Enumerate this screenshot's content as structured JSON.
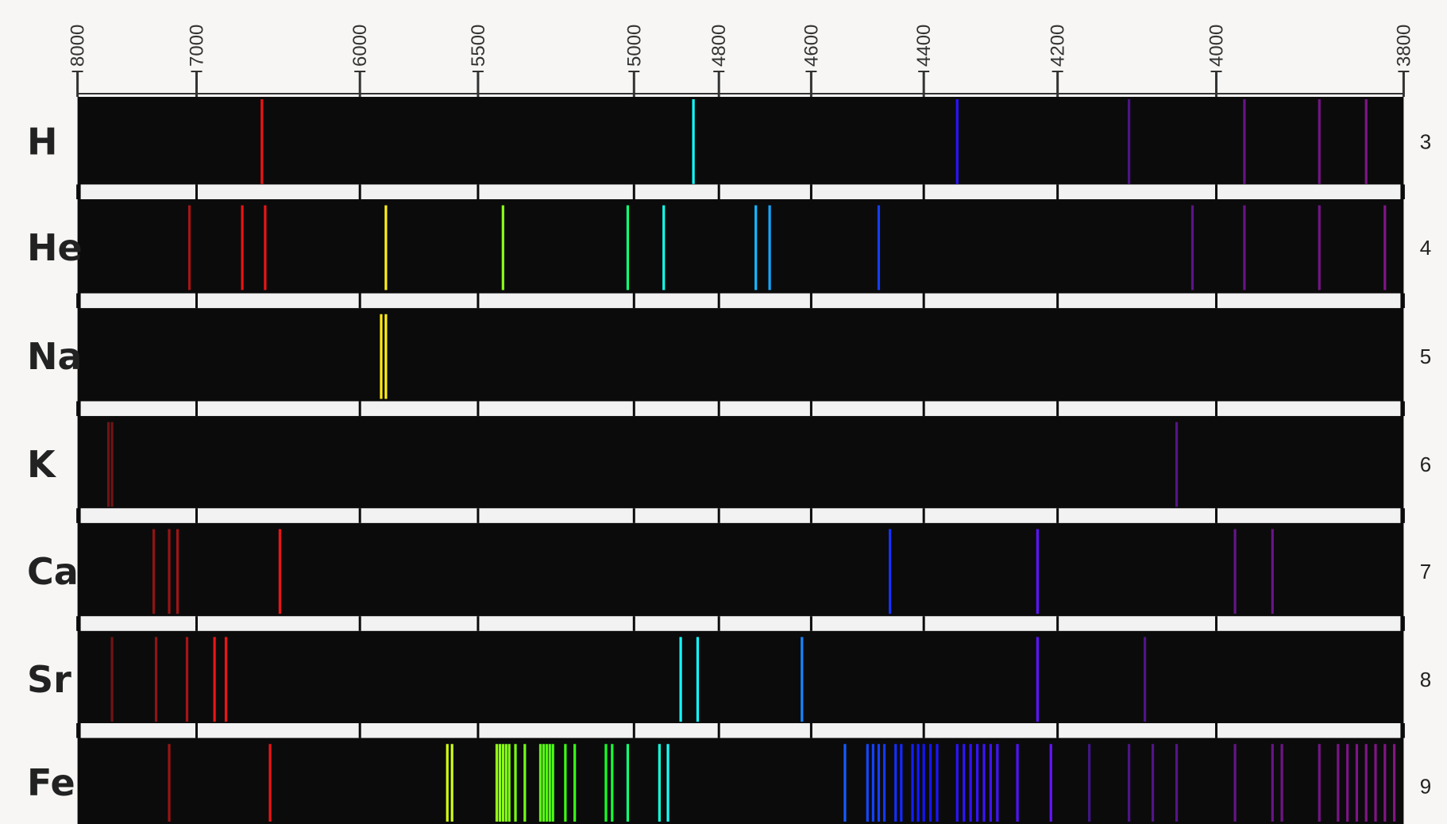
{
  "chart_data": {
    "type": "spectrum",
    "xlim": [
      8000,
      3800
    ],
    "xticks": [
      8000,
      7000,
      6000,
      5500,
      5000,
      4800,
      4600,
      4400,
      4200,
      4000,
      3800
    ],
    "series": [
      {
        "name": "H",
        "number": "3",
        "lines": [
          6600,
          4860,
          4350,
          4110,
          3970,
          3890,
          3840
        ]
      },
      {
        "name": "He",
        "number": "4",
        "lines": [
          7060,
          6720,
          6580,
          5890,
          5420,
          5020,
          4930,
          4720,
          4690,
          4480,
          4030,
          3970,
          3890,
          3820
        ]
      },
      {
        "name": "Na",
        "number": "5",
        "lines": [
          5910,
          5890
        ]
      },
      {
        "name": "K",
        "number": "6",
        "lines": [
          7740,
          7710,
          4050
        ]
      },
      {
        "name": "Ca",
        "number": "7",
        "lines": [
          7360,
          7230,
          7160,
          6490,
          4460,
          4230,
          3980,
          3940
        ]
      },
      {
        "name": "Sr",
        "number": "8",
        "lines": [
          7710,
          7340,
          7080,
          6890,
          6820,
          4890,
          4850,
          4620,
          4230,
          4090
        ]
      },
      {
        "name": "Fe",
        "number": "9",
        "lines": [
          7230,
          6550,
          5630,
          5610,
          5440,
          5430,
          5420,
          5410,
          5400,
          5380,
          5350,
          5300,
          5290,
          5280,
          5270,
          5260,
          5220,
          5190,
          5090,
          5070,
          5020,
          4940,
          4920,
          4540,
          4500,
          4490,
          4480,
          4470,
          4450,
          4440,
          4420,
          4410,
          4400,
          4390,
          4380,
          4350,
          4340,
          4330,
          4320,
          4310,
          4300,
          4290,
          4260,
          4210,
          4160,
          4110,
          4080,
          4050,
          3980,
          3940,
          3930,
          3890,
          3870,
          3860,
          3850,
          3840,
          3830,
          3820,
          3810
        ]
      }
    ]
  }
}
